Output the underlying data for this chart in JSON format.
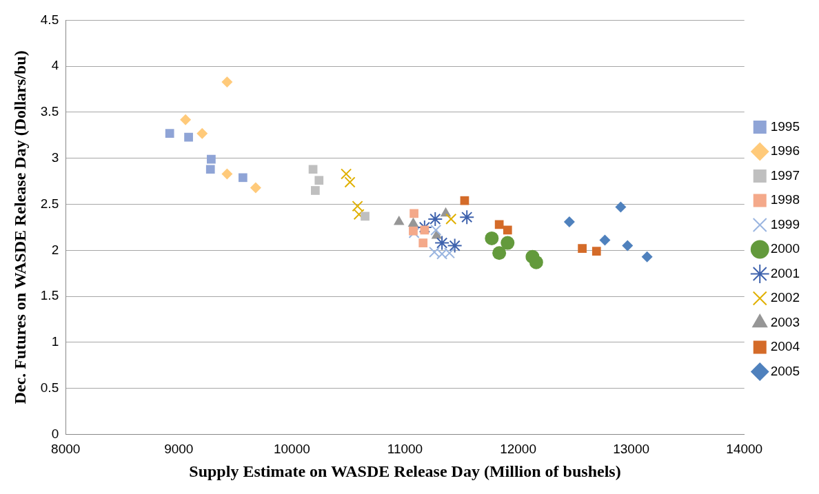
{
  "chart_data": {
    "type": "scatter",
    "xlabel": "Supply Estimate on WASDE Release Day (Million of bushels)",
    "ylabel": "Dec. Futures on WASDE Release Day (Dollars/bu)",
    "xlim": [
      8000,
      14000
    ],
    "xticks": [
      8000,
      9000,
      10000,
      11000,
      12000,
      13000,
      14000
    ],
    "ylim": [
      0,
      4.5
    ],
    "yticks": [
      0,
      0.5,
      1,
      1.5,
      2,
      2.5,
      3,
      3.5,
      4,
      4.5
    ],
    "grid": "y",
    "legend": "right",
    "series": [
      {
        "name": "2005",
        "color": "#4f81bd",
        "marker": "diamond",
        "x": [
          12453,
          12907,
          12767,
          12967,
          13140
        ],
        "values": [
          2.31,
          2.47,
          2.11,
          2.05,
          1.93
        ]
      },
      {
        "name": "2004",
        "color": "#d46b29",
        "marker": "square",
        "x": [
          11527,
          11833,
          11907,
          12567,
          12693
        ],
        "values": [
          2.54,
          2.28,
          2.22,
          2.02,
          1.99
        ]
      },
      {
        "name": "2003",
        "color": "#969696",
        "marker": "triangle",
        "x": [
          10947,
          11073,
          11280,
          11360
        ],
        "values": [
          2.31,
          2.29,
          2.16,
          2.4
        ]
      },
      {
        "name": "2002",
        "color": "#e0b000",
        "marker": "cross",
        "x": [
          10480,
          10513,
          10580,
          10593,
          11407
        ],
        "values": [
          2.83,
          2.74,
          2.48,
          2.39,
          2.34
        ]
      },
      {
        "name": "2001",
        "color": "#3e62ad",
        "x": [
          11173,
          11267,
          11547,
          11327,
          11440
        ],
        "values": [
          2.25,
          2.34,
          2.36,
          2.08,
          2.05
        ]
      },
      {
        "name": "2000",
        "color": "#639a3c",
        "marker": "circle",
        "x": [
          11767,
          11907,
          11833,
          12127,
          12160
        ],
        "values": [
          2.13,
          2.08,
          1.97,
          1.93,
          1.87
        ]
      },
      {
        "name": "1999",
        "color": "#9ab5e0",
        "marker": "cross",
        "x": [
          11080,
          11273,
          11260,
          11327,
          11393
        ],
        "values": [
          2.19,
          2.22,
          1.98,
          1.96,
          1.97
        ]
      },
      {
        "name": "1998",
        "color": "#f4a98a",
        "marker": "square",
        "x": [
          11080,
          11073,
          11173,
          11160
        ],
        "values": [
          2.4,
          2.21,
          2.22,
          2.08
        ]
      },
      {
        "name": "1997",
        "color": "#bfbfbf",
        "marker": "square",
        "x": [
          10187,
          10240,
          10207,
          10647
        ],
        "values": [
          2.88,
          2.76,
          2.65,
          2.37
        ]
      },
      {
        "name": "1996",
        "color": "#ffca7a",
        "marker": "diamond",
        "x": [
          9427,
          9060,
          9207,
          9427,
          9680
        ],
        "values": [
          3.83,
          3.42,
          3.27,
          2.83,
          2.68
        ]
      },
      {
        "name": "1995",
        "color": "#8fa4d6",
        "marker": "square",
        "x": [
          8920,
          9087,
          9287,
          9280,
          9567
        ],
        "values": [
          3.27,
          3.23,
          2.99,
          2.88,
          2.79
        ]
      }
    ]
  }
}
